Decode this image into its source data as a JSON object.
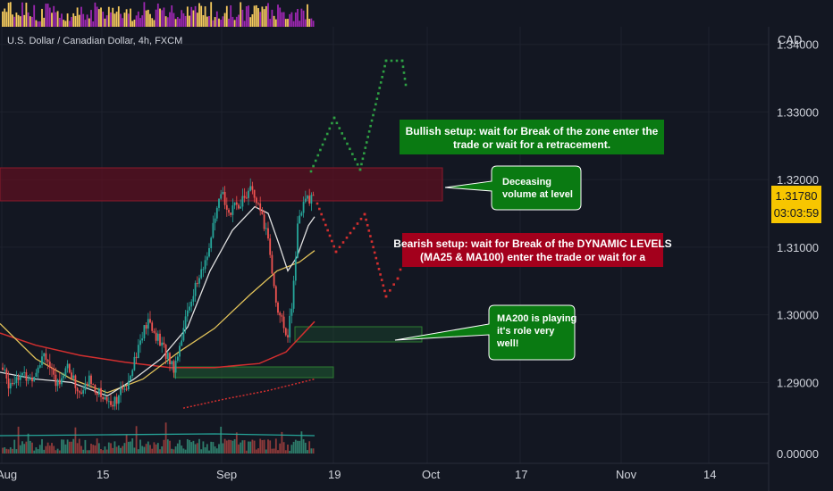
{
  "header": {
    "symbol": "U.S. Dollar / Canadian Dollar, 4h, FXCM",
    "currency": "CAD"
  },
  "price_badge": {
    "price": "1.31780",
    "countdown": "03:03:59",
    "color": "#f7c600"
  },
  "annotations": {
    "bullish": [
      "Bullish setup: wait for Break of the zone enter the",
      "trade or wait for a retracement."
    ],
    "bearish": [
      "Bearish setup: wait for Break of the DYNAMIC LEVELS",
      "(MA25 & MA100) enter the trade or wait for a"
    ],
    "volume_note": [
      "Deceasing",
      "volume at level"
    ],
    "ma200_note": [
      "MA200 is playing",
      "it's role very",
      "well!"
    ]
  },
  "colors": {
    "background": "#131722",
    "bull_candle": "#26a69a",
    "bear_candle": "#ef5350",
    "resistance_zone": "#8b1a2b",
    "support_zone": "#1e5631",
    "bullish_box": "#0a7a12",
    "bearish_box": "#a3001c",
    "ma25": "#e0e0e0",
    "ma100": "#e2c35a",
    "ma200": "#d32f2f"
  },
  "chart_data": {
    "type": "candlestick",
    "title": "U.S. Dollar / Canadian Dollar, 4h, FXCM",
    "x_tick_labels": [
      "Aug",
      "15",
      "Sep",
      "19",
      "Oct",
      "17",
      "Nov",
      "14"
    ],
    "y_tick_labels": [
      "1.29000",
      "1.30000",
      "1.31000",
      "1.32000",
      "1.33000",
      "1.34000"
    ],
    "volume_axis_label": "0.00000",
    "ylim": [
      1.2853,
      1.3426
    ],
    "last_price": 1.3178,
    "series": [
      {
        "name": "MA25",
        "color": "#e0e0e0"
      },
      {
        "name": "MA100",
        "color": "#e2c35a"
      },
      {
        "name": "MA200",
        "color": "#d32f2f"
      }
    ],
    "zones": [
      {
        "label": "resistance",
        "from": 1.3173,
        "to": 1.3222
      },
      {
        "label": "support",
        "from": 1.2951,
        "to": 1.2973
      },
      {
        "label": "lower support",
        "from": 1.2904,
        "to": 1.2918
      }
    ]
  }
}
